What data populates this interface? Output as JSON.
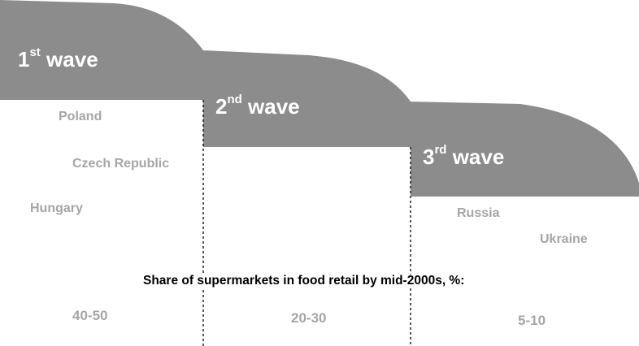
{
  "colors": {
    "wave_fill": "#8c8c8c",
    "wave_text": "#ffffff",
    "country_text": "#a6a6a6",
    "caption_text": "#000000",
    "divider": "#000000"
  },
  "waves": [
    {
      "number": "1",
      "suffix": "st",
      "word": "wave"
    },
    {
      "number": "2",
      "suffix": "nd",
      "word": "wave"
    },
    {
      "number": "3",
      "suffix": "rd",
      "word": "wave"
    }
  ],
  "countries": {
    "wave1": [
      "Poland",
      "Czech Republic",
      "Hungary"
    ],
    "wave3": [
      "Russia",
      "Ukraine"
    ]
  },
  "caption": "Share of supermarkets in food retail by mid-2000s, %:",
  "shares": [
    "40-50",
    "20-30",
    "5-10"
  ]
}
